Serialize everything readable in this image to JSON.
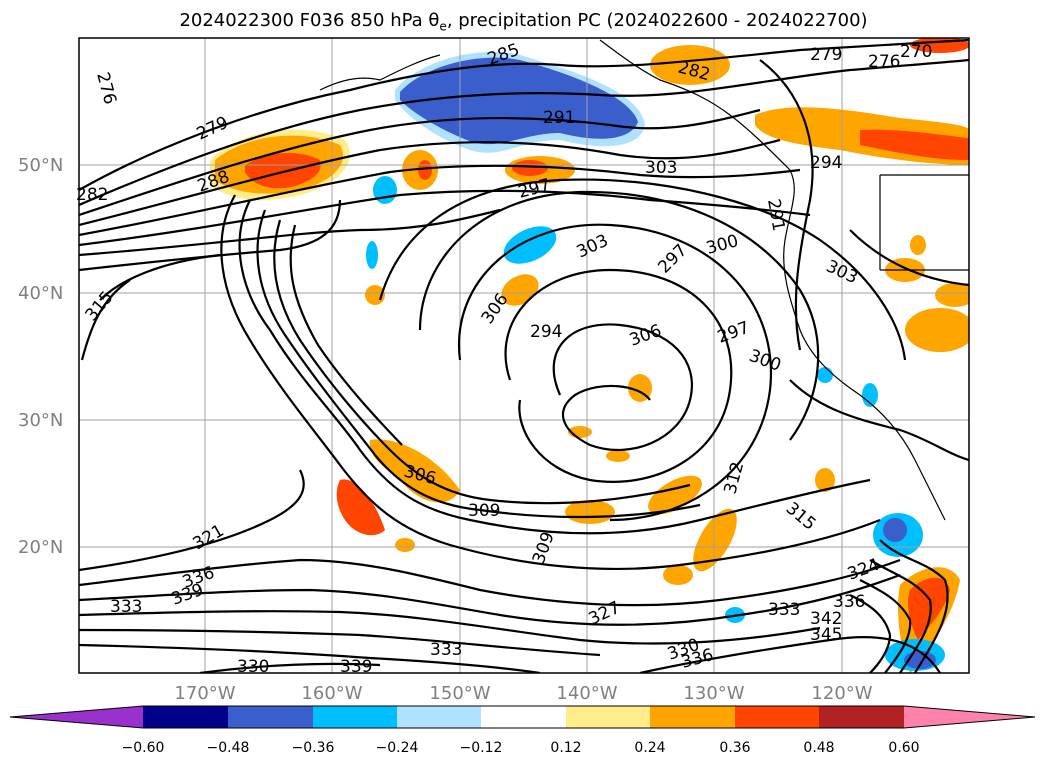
{
  "title": {
    "prefix": "2024022300 F036 850 hPa ",
    "theta": "θ",
    "theta_sub": "e",
    "suffix": ", precipitation PC (2024022600 - 2024022700)"
  },
  "axes": {
    "lat_labels": [
      "50°N",
      "40°N",
      "30°N",
      "20°N"
    ],
    "lon_labels": [
      "170°W",
      "160°W",
      "150°W",
      "140°W",
      "130°W",
      "120°W"
    ]
  },
  "colorbar": {
    "ticks": [
      "−0.60",
      "−0.48",
      "−0.36",
      "−0.24",
      "−0.12",
      "0.12",
      "0.24",
      "0.36",
      "0.48",
      "0.60"
    ],
    "colors": [
      "#9932cc",
      "#00008b",
      "#3a5fcd",
      "#00bfff",
      "#b0e2ff",
      "#ffffff",
      "#ffec8b",
      "#ffa500",
      "#ff4500",
      "#b22222",
      "#ff82ab"
    ]
  },
  "contour_labels": [
    "276",
    "285",
    "282",
    "279",
    "276",
    "270",
    "279",
    "291",
    "288",
    "282",
    "303",
    "294",
    "297",
    "291",
    "303",
    "300",
    "297",
    "303",
    "315",
    "306",
    "294",
    "306",
    "297",
    "300",
    "309",
    "306",
    "309",
    "312",
    "315",
    "321",
    "336",
    "339",
    "333",
    "327",
    "333",
    "336",
    "345",
    "342",
    "324",
    "330",
    "336",
    "339",
    "330",
    "333"
  ]
}
